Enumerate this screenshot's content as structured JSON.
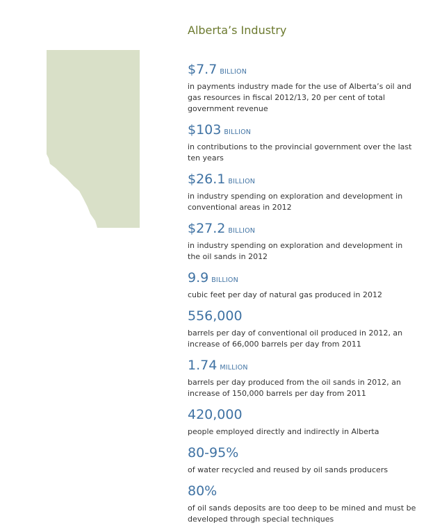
{
  "title": "Alberta’s Industry",
  "map_color": "#d9e0c8",
  "facts": [
    {
      "value": "$7.7",
      "unit": "Billion",
      "desc": "in payments industry made for the use of Alberta’s oil and gas resources in fiscal 2012/13, 20 per cent of total government revenue"
    },
    {
      "value": "$103",
      "unit": "Billion",
      "desc": "in contributions to the provincial government over the last ten years"
    },
    {
      "value": "$26.1",
      "unit": "Billion",
      "desc": "in industry spending on exploration and development in conventional areas in 2012"
    },
    {
      "value": "$27.2",
      "unit": "Billion",
      "desc": "in industry spending on exploration and development in the oil sands in 2012"
    },
    {
      "value": "9.9",
      "unit": "Billion",
      "desc": "cubic feet per day of natural gas produced in 2012"
    },
    {
      "value": "556,000",
      "unit": "",
      "desc": "barrels per day of conventional oil produced in 2012, an increase of 66,000 barrels per day from 2011"
    },
    {
      "value": "1.74",
      "unit": "Million",
      "desc": "barrels per day produced from the oil sands in 2012, an increase of 150,000 barrels per day from 2011"
    },
    {
      "value": "420,000",
      "unit": "",
      "desc": "people employed directly and indirectly in Alberta"
    },
    {
      "value": "80-95%",
      "unit": "",
      "desc": "of water recycled and reused by oil sands producers"
    },
    {
      "value": "80%",
      "unit": "",
      "desc": "of oil sands deposits are too deep to be mined and must be developed through special techniques"
    }
  ]
}
